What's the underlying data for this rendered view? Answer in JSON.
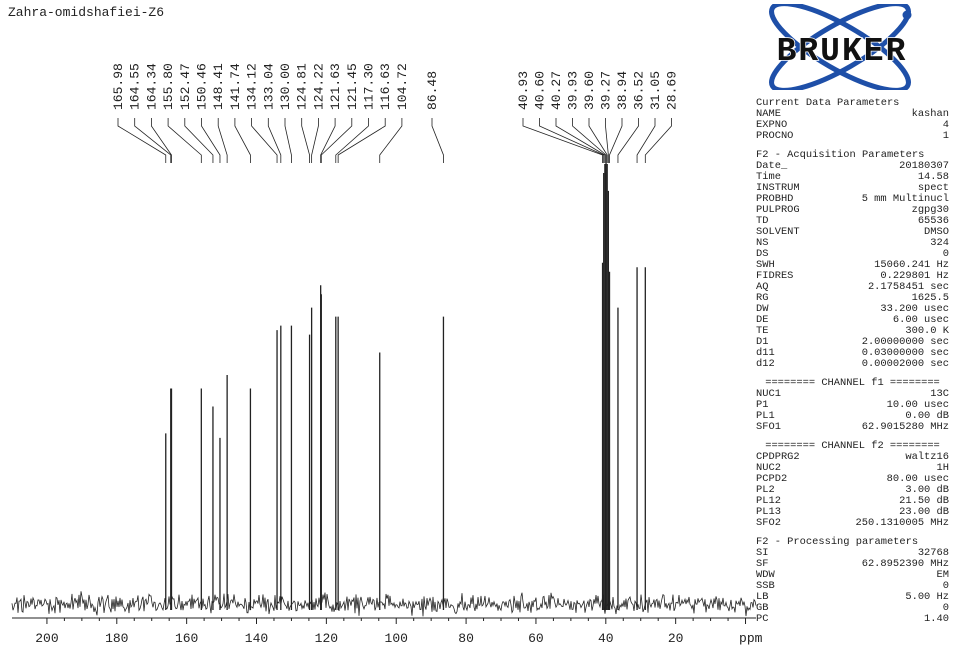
{
  "title": "Zahra-omidshafiei-Z6",
  "logo_text": "BRUKER",
  "colors": {
    "logo_blue": "#1e4fa8",
    "ink": "#222222"
  },
  "chart_data": {
    "type": "nmr-spectrum",
    "xlabel": "ppm",
    "xlim": [
      210,
      -3
    ],
    "x_ticks": [
      200,
      180,
      160,
      140,
      120,
      100,
      80,
      60,
      40,
      20
    ],
    "x_tick_labels": [
      "200",
      "180",
      "160",
      "140",
      "120",
      "100",
      "80",
      "60",
      "40",
      "20"
    ],
    "peak_labels_left": [
      "165.98",
      "164.55",
      "164.34",
      "155.80",
      "152.47",
      "150.46",
      "148.41",
      "141.74",
      "134.12",
      "133.04",
      "130.00",
      "124.81",
      "124.22",
      "121.63",
      "121.45",
      "117.30",
      "116.63",
      "104.72"
    ],
    "peak_label_center": [
      "86.48"
    ],
    "peak_labels_right": [
      "40.93",
      "40.60",
      "40.27",
      "39.93",
      "39.60",
      "39.27",
      "38.94",
      "36.52",
      "31.05",
      "28.69"
    ],
    "peaks": [
      {
        "ppm": 165.98,
        "height": 0.38
      },
      {
        "ppm": 164.55,
        "height": 0.48
      },
      {
        "ppm": 164.34,
        "height": 0.48
      },
      {
        "ppm": 155.8,
        "height": 0.48
      },
      {
        "ppm": 152.47,
        "height": 0.44
      },
      {
        "ppm": 150.46,
        "height": 0.37
      },
      {
        "ppm": 148.41,
        "height": 0.51
      },
      {
        "ppm": 141.74,
        "height": 0.48
      },
      {
        "ppm": 134.12,
        "height": 0.61
      },
      {
        "ppm": 133.04,
        "height": 0.62
      },
      {
        "ppm": 130.0,
        "height": 0.62
      },
      {
        "ppm": 124.81,
        "height": 0.6
      },
      {
        "ppm": 124.22,
        "height": 0.66
      },
      {
        "ppm": 121.63,
        "height": 0.71
      },
      {
        "ppm": 121.45,
        "height": 0.69
      },
      {
        "ppm": 117.3,
        "height": 0.64
      },
      {
        "ppm": 116.63,
        "height": 0.64
      },
      {
        "ppm": 104.72,
        "height": 0.56
      },
      {
        "ppm": 86.48,
        "height": 0.64
      },
      {
        "ppm": 40.93,
        "height": 0.76
      },
      {
        "ppm": 40.6,
        "height": 0.96
      },
      {
        "ppm": 40.27,
        "height": 0.98
      },
      {
        "ppm": 39.93,
        "height": 1.0
      },
      {
        "ppm": 39.6,
        "height": 0.98
      },
      {
        "ppm": 39.27,
        "height": 0.92
      },
      {
        "ppm": 38.94,
        "height": 0.74
      },
      {
        "ppm": 36.52,
        "height": 0.66
      },
      {
        "ppm": 31.05,
        "height": 0.75
      },
      {
        "ppm": 28.69,
        "height": 0.75
      }
    ]
  },
  "params": [
    {
      "kind": "header",
      "text": "Current Data Parameters"
    },
    {
      "kind": "row",
      "name": "NAME",
      "value": "kashan"
    },
    {
      "kind": "row",
      "name": "EXPNO",
      "value": "4"
    },
    {
      "kind": "row",
      "name": "PROCNO",
      "value": "1"
    },
    {
      "kind": "header",
      "text": "F2 - Acquisition Parameters"
    },
    {
      "kind": "row",
      "name": "Date_",
      "value": "20180307"
    },
    {
      "kind": "row",
      "name": "Time",
      "value": "14.58"
    },
    {
      "kind": "row",
      "name": "INSTRUM",
      "value": "spect"
    },
    {
      "kind": "row",
      "name": "PROBHD",
      "value": "5 mm Multinucl"
    },
    {
      "kind": "row",
      "name": "PULPROG",
      "value": "zgpg30"
    },
    {
      "kind": "row",
      "name": "TD",
      "value": "65536"
    },
    {
      "kind": "row",
      "name": "SOLVENT",
      "value": "DMSO"
    },
    {
      "kind": "row",
      "name": "NS",
      "value": "324"
    },
    {
      "kind": "row",
      "name": "DS",
      "value": "0"
    },
    {
      "kind": "row",
      "name": "SWH",
      "value": "15060.241 Hz"
    },
    {
      "kind": "row",
      "name": "FIDRES",
      "value": "0.229801 Hz"
    },
    {
      "kind": "row",
      "name": "AQ",
      "value": "2.1758451 sec"
    },
    {
      "kind": "row",
      "name": "RG",
      "value": "1625.5"
    },
    {
      "kind": "row",
      "name": "DW",
      "value": "33.200 usec"
    },
    {
      "kind": "row",
      "name": "DE",
      "value": "6.00 usec"
    },
    {
      "kind": "row",
      "name": "TE",
      "value": "300.0 K"
    },
    {
      "kind": "row",
      "name": "D1",
      "value": "2.00000000 sec"
    },
    {
      "kind": "row",
      "name": "d11",
      "value": "0.03000000 sec"
    },
    {
      "kind": "row",
      "name": "d12",
      "value": "0.00002000 sec"
    },
    {
      "kind": "sep",
      "text": "======== CHANNEL f1 ========"
    },
    {
      "kind": "row",
      "name": "NUC1",
      "value": "13C"
    },
    {
      "kind": "row",
      "name": "P1",
      "value": "10.00 usec"
    },
    {
      "kind": "row",
      "name": "PL1",
      "value": "0.00 dB"
    },
    {
      "kind": "row",
      "name": "SFO1",
      "value": "62.9015280 MHz"
    },
    {
      "kind": "sep",
      "text": "======== CHANNEL f2 ========"
    },
    {
      "kind": "row",
      "name": "CPDPRG2",
      "value": "waltz16"
    },
    {
      "kind": "row",
      "name": "NUC2",
      "value": "1H"
    },
    {
      "kind": "row",
      "name": "PCPD2",
      "value": "80.00 usec"
    },
    {
      "kind": "row",
      "name": "PL2",
      "value": "3.00 dB"
    },
    {
      "kind": "row",
      "name": "PL12",
      "value": "21.50 dB"
    },
    {
      "kind": "row",
      "name": "PL13",
      "value": "23.00 dB"
    },
    {
      "kind": "row",
      "name": "SFO2",
      "value": "250.1310005 MHz"
    },
    {
      "kind": "header",
      "text": "F2 - Processing parameters"
    },
    {
      "kind": "row",
      "name": "SI",
      "value": "32768"
    },
    {
      "kind": "row",
      "name": "SF",
      "value": "62.8952390 MHz"
    },
    {
      "kind": "row",
      "name": "WDW",
      "value": "EM"
    },
    {
      "kind": "row",
      "name": "SSB",
      "value": "0"
    },
    {
      "kind": "row",
      "name": "LB",
      "value": "5.00 Hz"
    },
    {
      "kind": "row",
      "name": "GB",
      "value": "0"
    },
    {
      "kind": "row",
      "name": "PC",
      "value": "1.40"
    }
  ]
}
